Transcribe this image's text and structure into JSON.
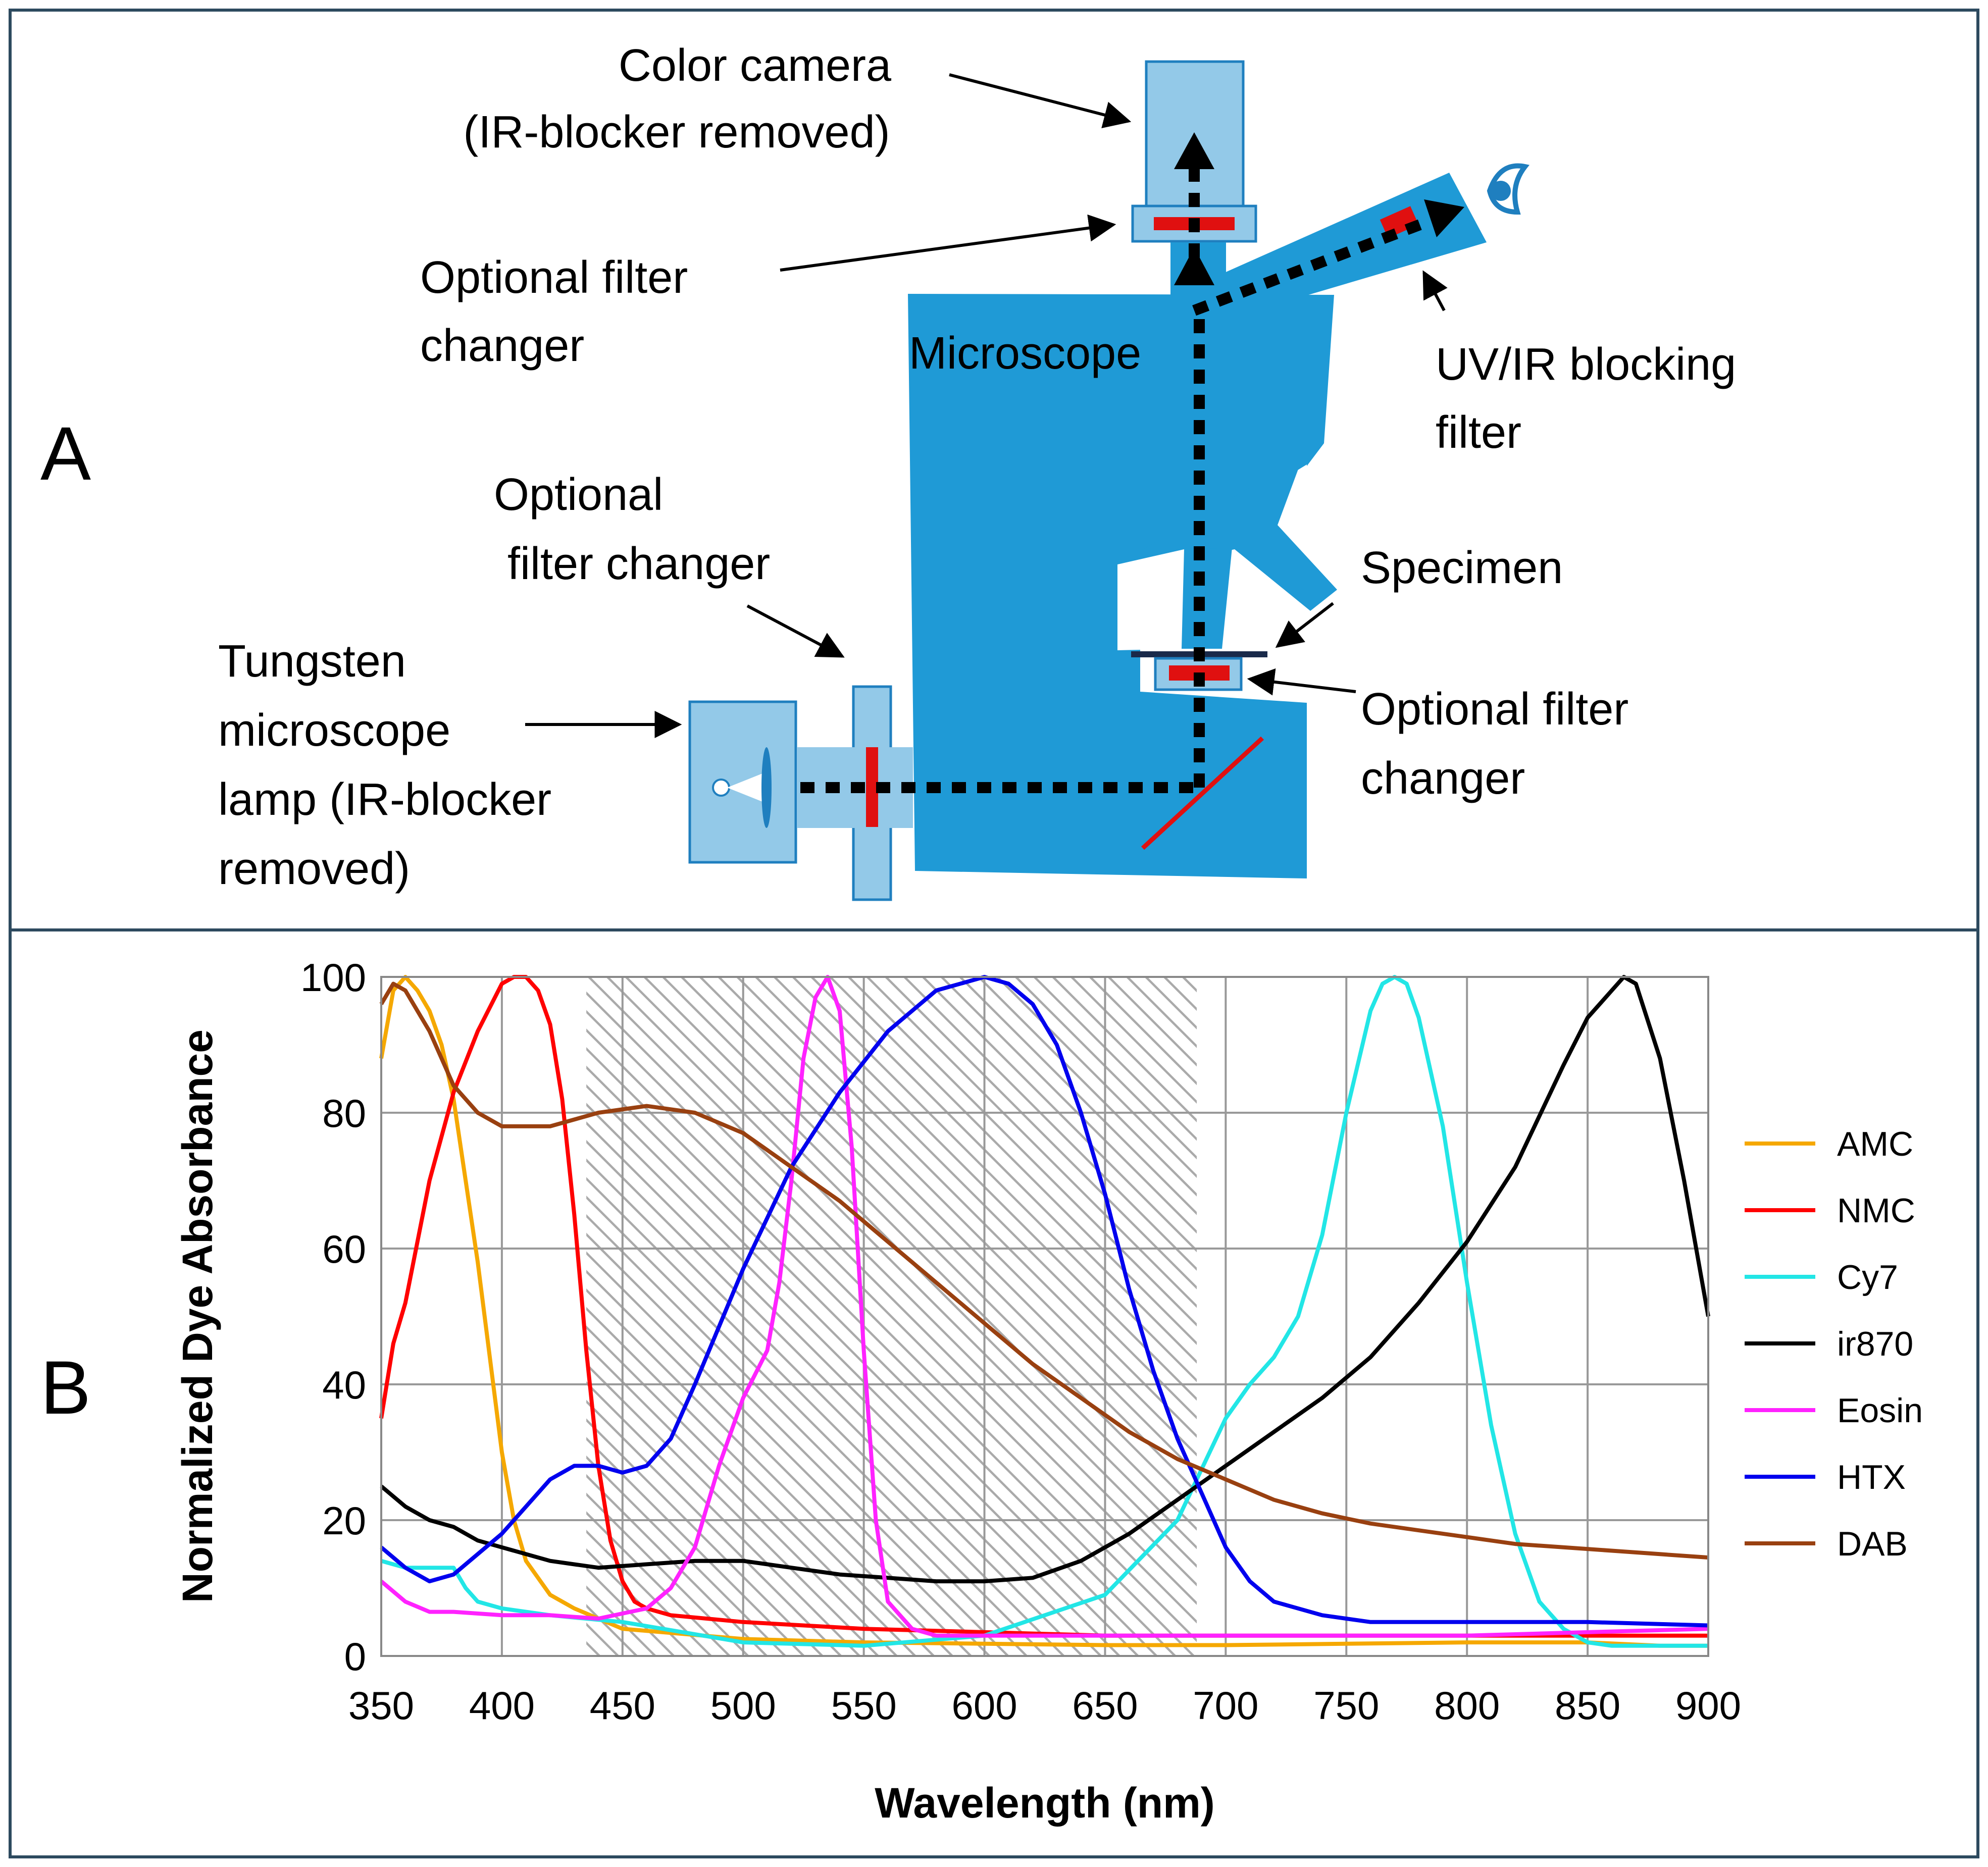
{
  "panel_a": {
    "letter": "A",
    "labels": {
      "camera_line1": "Color camera",
      "camera_line2": "(IR-blocker removed)",
      "filter_top_line1": "Optional filter",
      "filter_top_line2": "changer",
      "microscope": "Microscope",
      "uvir_line1": "UV/IR blocking",
      "uvir_line2": "filter",
      "filter_mid_line1": "Optional",
      "filter_mid_line2": "filter changer",
      "specimen": "Specimen",
      "lamp_line1": "Tungsten",
      "lamp_line2": "microscope",
      "lamp_line3": "lamp (IR-blocker",
      "lamp_line4": "removed)",
      "filter_stage_line1": "Optional filter",
      "filter_stage_line2": "changer"
    },
    "colors": {
      "microscope": "#1f9ad6",
      "component": "#93c9e8",
      "filter": "#e01010",
      "light_path": "#000000"
    }
  },
  "panel_b": {
    "letter": "B",
    "colors": {
      "hatch": "#aaaaaa",
      "grid": "#999999"
    }
  },
  "chart_data": {
    "type": "line",
    "title": "",
    "xlabel": "Wavelength (nm)",
    "ylabel": "Normalized Dye Absorbance",
    "xlim": [
      350,
      900
    ],
    "ylim": [
      0,
      100
    ],
    "xticks": [
      350,
      400,
      450,
      500,
      550,
      600,
      650,
      700,
      750,
      800,
      850,
      900
    ],
    "yticks": [
      0,
      20,
      40,
      60,
      80,
      100
    ],
    "grid": true,
    "legend_position": "right",
    "shaded_region": [
      435,
      688
    ],
    "series": [
      {
        "name": "AMC",
        "color": "#f5a800",
        "x": [
          350,
          355,
          360,
          365,
          370,
          375,
          380,
          385,
          390,
          395,
          400,
          405,
          410,
          420,
          430,
          440,
          450,
          500,
          550,
          600,
          650,
          700,
          750,
          800,
          850,
          880,
          900
        ],
        "y": [
          88,
          98,
          100,
          98,
          95,
          90,
          82,
          70,
          58,
          44,
          30,
          20,
          14,
          9,
          7,
          5.5,
          4,
          2.5,
          2,
          1.8,
          1.6,
          1.6,
          1.8,
          2,
          2,
          1.5,
          1.5
        ]
      },
      {
        "name": "NMC",
        "color": "#ff0000",
        "x": [
          350,
          355,
          360,
          370,
          380,
          390,
          400,
          405,
          410,
          415,
          420,
          425,
          430,
          435,
          440,
          445,
          450,
          455,
          460,
          470,
          500,
          550,
          600,
          650,
          700,
          750,
          800,
          850,
          900
        ],
        "y": [
          35,
          46,
          52,
          70,
          83,
          92,
          99,
          100,
          100,
          98,
          93,
          82,
          65,
          45,
          28,
          17,
          11,
          8,
          7,
          6,
          5,
          4,
          3.5,
          3,
          3,
          3,
          3,
          3,
          3
        ]
      },
      {
        "name": "Cy7",
        "color": "#22e6e6",
        "x": [
          350,
          360,
          370,
          380,
          385,
          390,
          400,
          420,
          450,
          500,
          550,
          600,
          650,
          680,
          700,
          710,
          720,
          730,
          740,
          750,
          760,
          765,
          770,
          775,
          780,
          790,
          800,
          810,
          820,
          830,
          840,
          850,
          860,
          880,
          900
        ],
        "y": [
          14,
          13,
          13,
          13,
          10,
          8,
          7,
          6,
          5,
          2,
          1.5,
          3,
          9,
          20,
          35,
          40,
          44,
          50,
          62,
          80,
          95,
          99,
          100,
          99,
          94,
          78,
          55,
          34,
          18,
          8,
          4,
          2,
          1.5,
          1.5,
          1.5
        ]
      },
      {
        "name": "ir870",
        "color": "#000000",
        "x": [
          350,
          360,
          370,
          380,
          390,
          400,
          420,
          440,
          460,
          480,
          500,
          520,
          540,
          560,
          580,
          600,
          620,
          640,
          660,
          680,
          700,
          720,
          740,
          760,
          780,
          800,
          820,
          840,
          850,
          860,
          865,
          870,
          880,
          890,
          900
        ],
        "y": [
          25,
          22,
          20,
          19,
          17,
          16,
          14,
          13,
          13.5,
          14,
          14,
          13,
          12,
          11.5,
          11,
          11,
          11.5,
          14,
          18,
          23,
          28,
          33,
          38,
          44,
          52,
          61,
          72,
          87,
          94,
          98,
          100,
          99,
          88,
          70,
          50
        ]
      },
      {
        "name": "Eosin",
        "color": "#ff22ff",
        "x": [
          350,
          360,
          370,
          380,
          400,
          420,
          440,
          460,
          470,
          480,
          490,
          500,
          510,
          515,
          520,
          525,
          530,
          535,
          540,
          545,
          550,
          555,
          560,
          570,
          580,
          600,
          650,
          700,
          750,
          800,
          850,
          900
        ],
        "y": [
          11,
          8,
          6.5,
          6.5,
          6,
          6,
          5.5,
          7,
          10,
          16,
          28,
          38,
          45,
          55,
          70,
          88,
          97,
          100,
          95,
          75,
          45,
          20,
          8,
          4,
          3,
          3,
          3,
          3,
          3,
          3,
          3.5,
          4
        ]
      },
      {
        "name": "HTX",
        "color": "#0000ee",
        "x": [
          350,
          360,
          370,
          380,
          400,
          420,
          430,
          440,
          450,
          460,
          470,
          480,
          500,
          520,
          540,
          560,
          580,
          600,
          610,
          620,
          630,
          640,
          650,
          660,
          670,
          680,
          690,
          700,
          710,
          720,
          740,
          760,
          800,
          850,
          900
        ],
        "y": [
          16,
          13,
          11,
          12,
          18,
          26,
          28,
          28,
          27,
          28,
          32,
          40,
          57,
          72,
          83,
          92,
          98,
          100,
          99,
          96,
          90,
          80,
          68,
          54,
          42,
          32,
          24,
          16,
          11,
          8,
          6,
          5,
          5,
          5,
          4.5
        ]
      },
      {
        "name": "DAB",
        "color": "#994010",
        "x": [
          350,
          355,
          360,
          370,
          380,
          390,
          400,
          420,
          440,
          460,
          480,
          500,
          520,
          540,
          560,
          580,
          600,
          620,
          640,
          660,
          680,
          700,
          720,
          740,
          760,
          780,
          800,
          820,
          840,
          860,
          880,
          900
        ],
        "y": [
          96,
          99,
          98,
          92,
          84,
          80,
          78,
          78,
          80,
          81,
          80,
          77,
          72,
          67,
          61,
          55,
          49,
          43,
          38,
          33,
          29,
          26,
          23,
          21,
          19.5,
          18.5,
          17.5,
          16.5,
          16,
          15.5,
          15,
          14.5
        ]
      }
    ]
  }
}
